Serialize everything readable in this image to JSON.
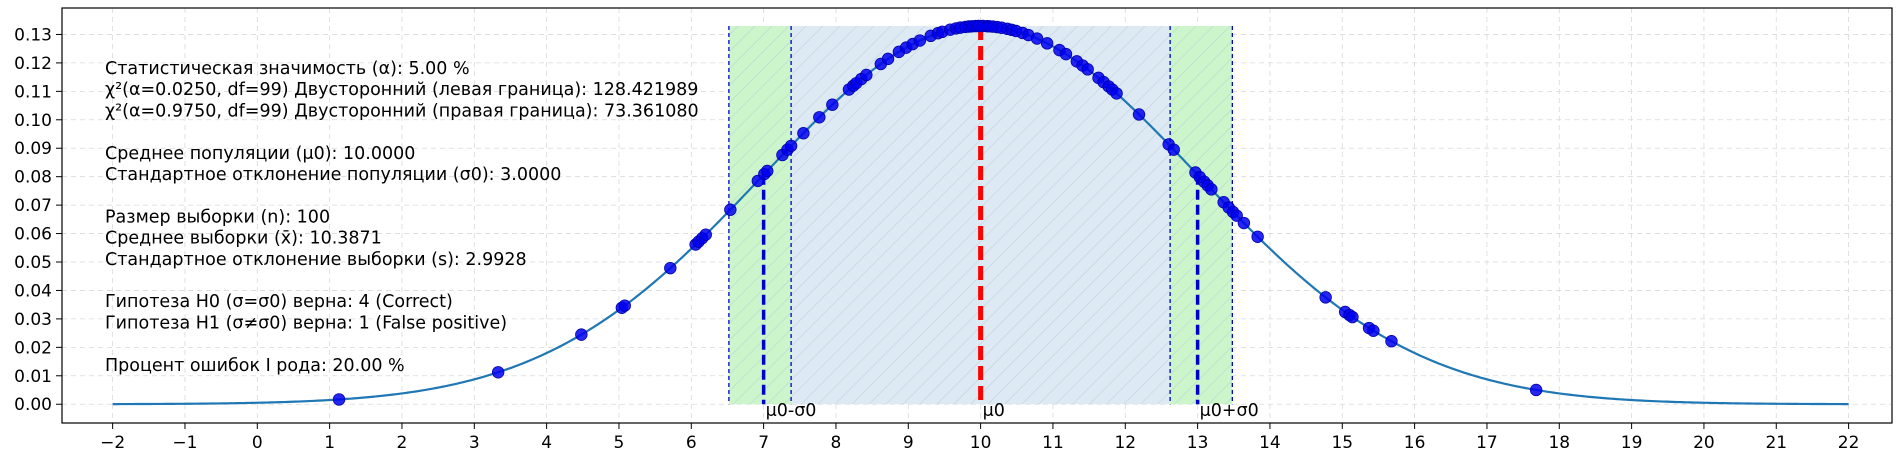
{
  "chart_data": {
    "type": "line",
    "title": "",
    "xlabel": "",
    "ylabel": "",
    "xlim": [
      -2.7,
      22.6
    ],
    "ylim": [
      -0.0066,
      0.1393
    ],
    "x_ticks": [
      -2,
      -1,
      0,
      1,
      2,
      3,
      4,
      5,
      6,
      7,
      8,
      9,
      10,
      11,
      12,
      13,
      14,
      15,
      16,
      17,
      18,
      19,
      20,
      21,
      22
    ],
    "x_tick_labels": [
      "−2",
      "−1",
      "0",
      "1",
      "2",
      "3",
      "4",
      "5",
      "6",
      "7",
      "8",
      "9",
      "10",
      "11",
      "12",
      "13",
      "14",
      "15",
      "16",
      "17",
      "18",
      "19",
      "20",
      "21",
      "22"
    ],
    "y_ticks": [
      0.0,
      0.01,
      0.02,
      0.03,
      0.04,
      0.05,
      0.06,
      0.07,
      0.08,
      0.09,
      0.1,
      0.11,
      0.12,
      0.13
    ],
    "y_tick_labels": [
      "0.00",
      "0.01",
      "0.02",
      "0.03",
      "0.04",
      "0.05",
      "0.06",
      "0.07",
      "0.08",
      "0.09",
      "0.10",
      "0.11",
      "0.12",
      "0.13"
    ],
    "grid": true,
    "curve": {
      "kind": "normal_pdf",
      "mean": 10.0,
      "sd": 3.0,
      "x_range": [
        -2,
        22
      ],
      "color": "#1f77b4"
    },
    "regions": [
      {
        "kind": "outer",
        "x": [
          6.52,
          7.38
        ],
        "color": "#ccf5cc",
        "border_color": "#0000cc"
      },
      {
        "kind": "central",
        "x": [
          7.38,
          12.62
        ],
        "color": "#dde9f3",
        "border_color": "#0000cc"
      },
      {
        "kind": "outer",
        "x": [
          12.62,
          13.48
        ],
        "color": "#ccf5cc",
        "border_color": "#0000cc"
      }
    ],
    "vlines": [
      {
        "x": 7.0,
        "label": "μ0-σ0",
        "color": "#0000cc"
      },
      {
        "x": 10.0,
        "label": "μ0",
        "color": "#ff0000"
      },
      {
        "x": 13.0,
        "label": "μ0+σ0",
        "color": "#0000cc"
      }
    ],
    "sample_points_x": [
      1.13,
      3.33,
      4.48,
      5.04,
      5.08,
      5.71,
      6.06,
      6.1,
      6.15,
      6.2,
      6.54,
      6.92,
      7.01,
      7.05,
      7.26,
      7.33,
      7.38,
      7.55,
      7.77,
      7.95,
      8.18,
      8.24,
      8.28,
      8.35,
      8.42,
      8.62,
      8.72,
      8.87,
      8.97,
      9.06,
      9.16,
      9.31,
      9.41,
      9.47,
      9.58,
      9.66,
      9.72,
      9.79,
      9.84,
      9.88,
      9.93,
      9.97,
      10.03,
      10.09,
      10.12,
      10.17,
      10.23,
      10.29,
      10.37,
      10.43,
      10.49,
      10.58,
      10.66,
      10.78,
      10.92,
      11.09,
      11.18,
      11.33,
      11.41,
      11.48,
      11.63,
      11.7,
      11.77,
      11.82,
      11.88,
      12.19,
      12.6,
      12.67,
      12.97,
      13.03,
      13.09,
      13.14,
      13.19,
      13.36,
      13.43,
      13.49,
      13.54,
      13.64,
      13.83,
      14.77,
      15.04,
      15.1,
      15.14,
      15.37,
      15.43,
      15.68,
      17.68
    ],
    "point_color": "#0000ee",
    "annotations": [
      "Статистическая значимость (α): 5.00 %",
      "χ²(α=0.0250, df=99) Двусторонний (левая граница): 128.421989",
      "χ²(α=0.9750, df=99) Двусторонний (правая граница): 73.361080",
      "",
      "Среднее популяции (μ0): 10.0000",
      "Стандартное отклонение популяции (σ0): 3.0000",
      "",
      "Размер выборки (n): 100",
      "Среднее выборки (x̄): 10.3871",
      "Стандартное отклонение выборки (s): 2.9928",
      "",
      "Гипотеза H0 (σ=σ0) верна: 4 (Correct)",
      "Гипотеза H1 (σ≠σ0) верна: 1 (False positive)",
      "",
      "Процент ошибок I рода: 20.00 %"
    ]
  }
}
